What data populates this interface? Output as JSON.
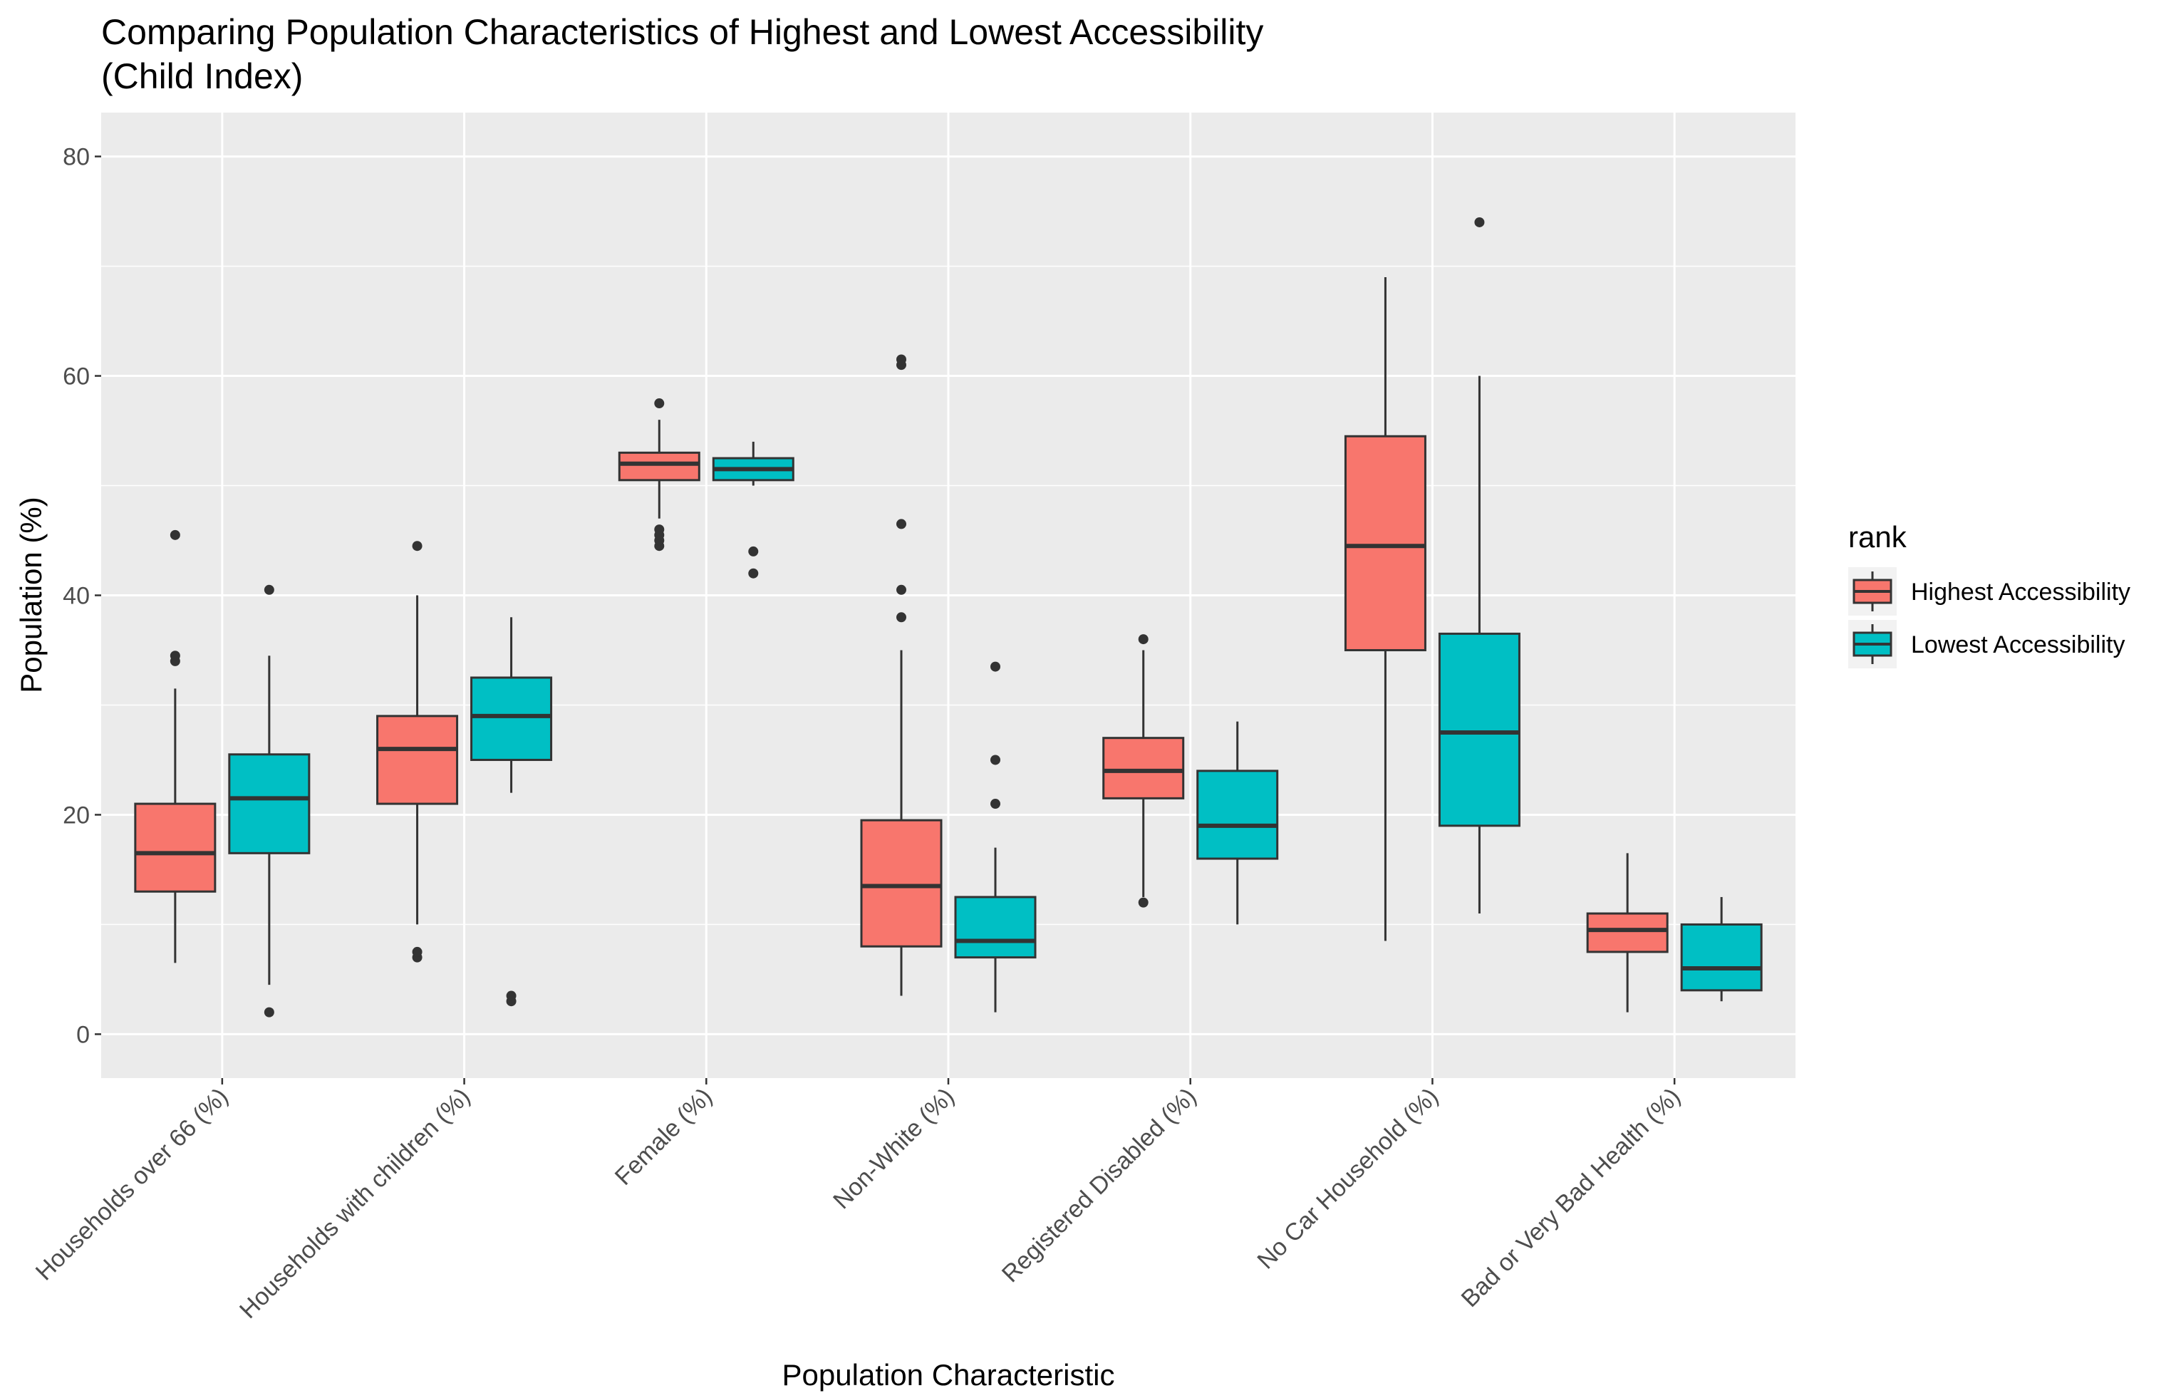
{
  "chart_data": {
    "type": "boxplot",
    "title": "Comparing Population Characteristics of Highest and Lowest Accessibility",
    "subtitle": "(Child Index)",
    "xlabel": "Population Characteristic",
    "ylabel": "Population (%)",
    "ylim": [
      -4,
      84
    ],
    "yticks": [
      0,
      20,
      40,
      60,
      80
    ],
    "grid": true,
    "legend": {
      "title": "rank",
      "position": "right",
      "entries": [
        {
          "label": "Highest Accessibility",
          "color": "#F8766D"
        },
        {
          "label": "Lowest Accessibility",
          "color": "#00BFC4"
        }
      ]
    },
    "categories": [
      "Households over 66 (%)",
      "Households with children (%)",
      "Female (%)",
      "Non-White (%)",
      "Registered Disabled (%)",
      "No Car Household (%)",
      "Bad or Very Bad Health (%)"
    ],
    "series": [
      {
        "name": "Highest Accessibility",
        "color": "#F8766D",
        "boxes": [
          {
            "min": 6.5,
            "q1": 13.0,
            "median": 16.5,
            "q3": 21.0,
            "max": 31.5,
            "outliers": [
              34.0,
              34.5,
              45.5
            ]
          },
          {
            "min": 10.0,
            "q1": 21.0,
            "median": 26.0,
            "q3": 29.0,
            "max": 40.0,
            "outliers": [
              7.0,
              7.5,
              44.5
            ]
          },
          {
            "min": 47.0,
            "q1": 50.5,
            "median": 52.0,
            "q3": 53.0,
            "max": 56.0,
            "outliers": [
              44.5,
              45.0,
              45.5,
              46.0,
              57.5
            ]
          },
          {
            "min": 3.5,
            "q1": 8.0,
            "median": 13.5,
            "q3": 19.5,
            "max": 35.0,
            "outliers": [
              38.0,
              40.5,
              46.5,
              61.0,
              61.5
            ]
          },
          {
            "min": 12.5,
            "q1": 21.5,
            "median": 24.0,
            "q3": 27.0,
            "max": 35.0,
            "outliers": [
              12.0,
              36.0
            ]
          },
          {
            "min": 8.5,
            "q1": 35.0,
            "median": 44.5,
            "q3": 54.5,
            "max": 69.0,
            "outliers": []
          },
          {
            "min": 2.0,
            "q1": 7.5,
            "median": 9.5,
            "q3": 11.0,
            "max": 16.5,
            "outliers": []
          }
        ]
      },
      {
        "name": "Lowest Accessibility",
        "color": "#00BFC4",
        "boxes": [
          {
            "min": 4.5,
            "q1": 16.5,
            "median": 21.5,
            "q3": 25.5,
            "max": 34.5,
            "outliers": [
              2.0,
              40.5
            ]
          },
          {
            "min": 22.0,
            "q1": 25.0,
            "median": 29.0,
            "q3": 32.5,
            "max": 38.0,
            "outliers": [
              3.0,
              3.5
            ]
          },
          {
            "min": 50.0,
            "q1": 50.5,
            "median": 51.5,
            "q3": 52.5,
            "max": 54.0,
            "outliers": [
              42.0,
              44.0
            ]
          },
          {
            "min": 2.0,
            "q1": 7.0,
            "median": 8.5,
            "q3": 12.5,
            "max": 17.0,
            "outliers": [
              21.0,
              25.0,
              33.5
            ]
          },
          {
            "min": 10.0,
            "q1": 16.0,
            "median": 19.0,
            "q3": 24.0,
            "max": 28.5,
            "outliers": []
          },
          {
            "min": 11.0,
            "q1": 19.0,
            "median": 27.5,
            "q3": 36.5,
            "max": 60.0,
            "outliers": [
              74.0
            ]
          },
          {
            "min": 3.0,
            "q1": 4.0,
            "median": 6.0,
            "q3": 10.0,
            "max": 12.5,
            "outliers": []
          }
        ]
      }
    ]
  },
  "colors": {
    "panel_background": "#EBEBEB",
    "grid": "#FFFFFF",
    "box_outline": "#333333",
    "tick_text": "#4D4D4D"
  }
}
